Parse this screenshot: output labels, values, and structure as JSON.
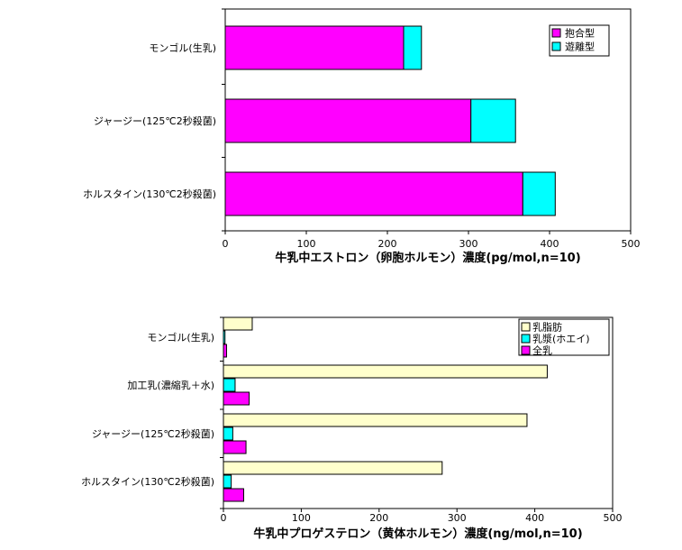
{
  "chart_data": [
    {
      "type": "bar",
      "orientation": "horizontal",
      "stacked": true,
      "categories": [
        "モンゴル(生乳)",
        "ジャージー(125℃2秒殺菌)",
        "ホルスタイン(130℃2秒殺菌)"
      ],
      "series": [
        {
          "name": "抱合型",
          "color": "#ff00ff",
          "values": [
            220,
            303,
            367
          ]
        },
        {
          "name": "遊離型",
          "color": "#00ffff",
          "values": [
            22,
            55,
            40
          ]
        }
      ],
      "xlabel": "牛乳中エストロン（卵胞ホルモン）濃度(pg/mol,n=10)",
      "xlim": [
        0,
        500
      ],
      "xticks": [
        0,
        100,
        200,
        300,
        400,
        500
      ],
      "legend": "top-right",
      "grid": false
    },
    {
      "type": "bar",
      "orientation": "horizontal",
      "stacked": false,
      "categories": [
        "モンゴル(生乳)",
        "加工乳(濃縮乳＋水)",
        "ジャージー(125℃2秒殺菌)",
        "ホルスタイン(130℃2秒殺菌)"
      ],
      "series": [
        {
          "name": "乳脂肪",
          "color": "#ffffcc",
          "values": [
            37,
            416,
            390,
            281
          ]
        },
        {
          "name": "乳漿(ホエイ)",
          "color": "#00ffff",
          "values": [
            2,
            15,
            12,
            10
          ]
        },
        {
          "name": "全乳",
          "color": "#ff00ff",
          "values": [
            4,
            33,
            29,
            26
          ]
        }
      ],
      "xlabel": "牛乳中プロゲステロン（黄体ホルモン）濃度(ng/mol,n=10)",
      "xlim": [
        0,
        500
      ],
      "xticks": [
        0,
        100,
        200,
        300,
        400,
        500
      ],
      "legend": "top-right",
      "grid": false
    }
  ]
}
